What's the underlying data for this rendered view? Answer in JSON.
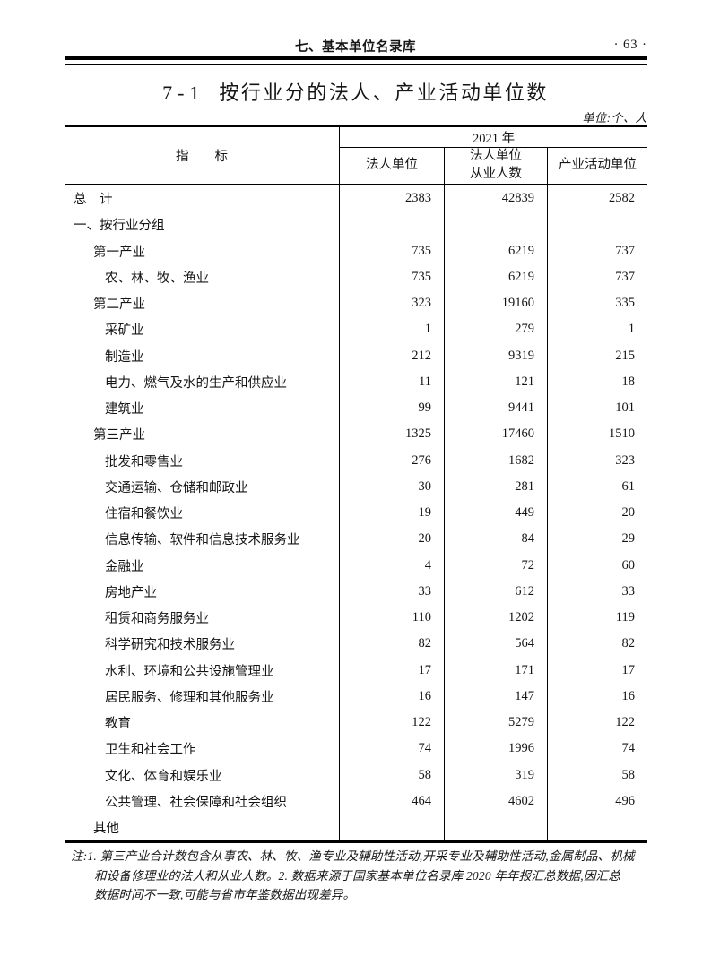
{
  "page": {
    "running_head": "七、基本单位名录库",
    "page_number": "· 63 ·",
    "title_number": "7-1",
    "title_text": "按行业分的法人、产业活动单位数",
    "unit_note": "单位:个、人"
  },
  "table": {
    "indicator_header": "指　　标",
    "year_header": "2021 年",
    "col_legal_units": "法人单位",
    "col_employees_line1": "法人单位",
    "col_employees_line2": "从业人数",
    "col_activity_units": "产业活动单位",
    "rows": [
      {
        "label": "总　计",
        "indent": 0,
        "values": [
          "2383",
          "42839",
          "2582"
        ]
      },
      {
        "label": "一、按行业分组",
        "indent": 0,
        "values": [
          "",
          "",
          ""
        ]
      },
      {
        "label": "第一产业",
        "indent": 1,
        "values": [
          "735",
          "6219",
          "737"
        ]
      },
      {
        "label": "农、林、牧、渔业",
        "indent": 2,
        "values": [
          "735",
          "6219",
          "737"
        ]
      },
      {
        "label": "第二产业",
        "indent": 1,
        "values": [
          "323",
          "19160",
          "335"
        ]
      },
      {
        "label": "采矿业",
        "indent": 2,
        "values": [
          "1",
          "279",
          "1"
        ]
      },
      {
        "label": "制造业",
        "indent": 2,
        "values": [
          "212",
          "9319",
          "215"
        ]
      },
      {
        "label": "电力、燃气及水的生产和供应业",
        "indent": 2,
        "values": [
          "11",
          "121",
          "18"
        ]
      },
      {
        "label": "建筑业",
        "indent": 2,
        "values": [
          "99",
          "9441",
          "101"
        ]
      },
      {
        "label": "第三产业",
        "indent": 1,
        "values": [
          "1325",
          "17460",
          "1510"
        ]
      },
      {
        "label": "批发和零售业",
        "indent": 2,
        "values": [
          "276",
          "1682",
          "323"
        ]
      },
      {
        "label": "交通运输、仓储和邮政业",
        "indent": 2,
        "values": [
          "30",
          "281",
          "61"
        ]
      },
      {
        "label": "住宿和餐饮业",
        "indent": 2,
        "values": [
          "19",
          "449",
          "20"
        ]
      },
      {
        "label": "信息传输、软件和信息技术服务业",
        "indent": 2,
        "values": [
          "20",
          "84",
          "29"
        ]
      },
      {
        "label": "金融业",
        "indent": 2,
        "values": [
          "4",
          "72",
          "60"
        ]
      },
      {
        "label": "房地产业",
        "indent": 2,
        "values": [
          "33",
          "612",
          "33"
        ]
      },
      {
        "label": "租赁和商务服务业",
        "indent": 2,
        "values": [
          "110",
          "1202",
          "119"
        ]
      },
      {
        "label": "科学研究和技术服务业",
        "indent": 2,
        "values": [
          "82",
          "564",
          "82"
        ]
      },
      {
        "label": "水利、环境和公共设施管理业",
        "indent": 2,
        "values": [
          "17",
          "171",
          "17"
        ]
      },
      {
        "label": "居民服务、修理和其他服务业",
        "indent": 2,
        "values": [
          "16",
          "147",
          "16"
        ]
      },
      {
        "label": "教育",
        "indent": 2,
        "values": [
          "122",
          "5279",
          "122"
        ]
      },
      {
        "label": "卫生和社会工作",
        "indent": 2,
        "values": [
          "74",
          "1996",
          "74"
        ]
      },
      {
        "label": "文化、体育和娱乐业",
        "indent": 2,
        "values": [
          "58",
          "319",
          "58"
        ]
      },
      {
        "label": "公共管理、社会保障和社会组织",
        "indent": 2,
        "values": [
          "464",
          "4602",
          "496"
        ]
      },
      {
        "label": "其他",
        "indent": 1,
        "values": [
          "",
          "",
          ""
        ]
      }
    ]
  },
  "notes": {
    "lines": [
      "注:1. 第三产业合计数包含从事农、林、牧、渔专业及辅助性活动,开采专业及辅助性活动,金属制品、机械",
      "和设备修理业的法人和从业人数。2. 数据来源于国家基本单位名录库 2020 年年报汇总数据,因汇总",
      "数据时间不一致,可能与省市年鉴数据出现差异。"
    ]
  },
  "colors": {
    "ink": "#151515",
    "paper": "#ffffff",
    "rule": "#000000"
  }
}
